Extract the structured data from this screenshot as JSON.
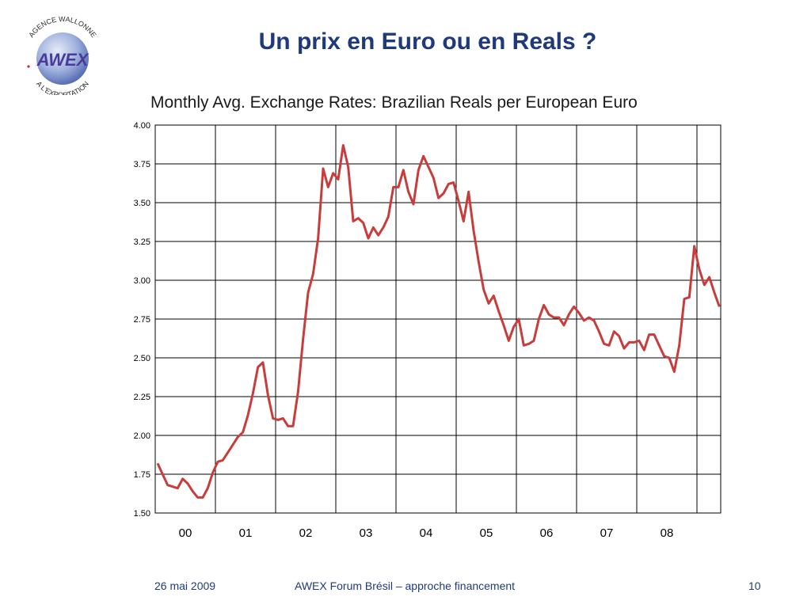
{
  "slide": {
    "title": "Un prix en Euro ou en Reals ?",
    "logo_text_top": "AGENCE WALLONNE",
    "logo_text_mid": "AWEX",
    "logo_text_bottom": "A L'EXPORTATION"
  },
  "footer": {
    "date": "26 mai 2009",
    "center": "AWEX Forum Brésil – approche financement",
    "page": "10"
  },
  "colors": {
    "title": "#1f3a7a",
    "series": "#c83c3c",
    "grid": "#000000"
  },
  "chart_data": {
    "type": "line",
    "title": "Monthly Avg. Exchange Rates: Brazilian Reals per European Euro",
    "xlabel": "",
    "ylabel": "",
    "ylim": [
      1.5,
      4.0
    ],
    "yticks": [
      "4.00",
      "3.75",
      "3.50",
      "3.25",
      "3.00",
      "2.75",
      "2.50",
      "2.25",
      "2.00",
      "1.75",
      "1.50"
    ],
    "xticks": [
      "00",
      "01",
      "02",
      "03",
      "04",
      "05",
      "06",
      "07",
      "08"
    ],
    "grid": true,
    "series": [
      {
        "name": "",
        "values": [
          1.82,
          1.75,
          1.68,
          1.67,
          1.66,
          1.72,
          1.69,
          1.64,
          1.6,
          1.6,
          1.66,
          1.76,
          1.83,
          1.84,
          1.89,
          1.94,
          1.99,
          2.02,
          2.13,
          2.27,
          2.44,
          2.47,
          2.26,
          2.11,
          2.1,
          2.11,
          2.06,
          2.06,
          2.28,
          2.62,
          2.92,
          3.04,
          3.27,
          3.72,
          3.6,
          3.69,
          3.65,
          3.87,
          3.73,
          3.38,
          3.4,
          3.37,
          3.27,
          3.34,
          3.29,
          3.34,
          3.41,
          3.6,
          3.6,
          3.71,
          3.57,
          3.49,
          3.71,
          3.8,
          3.73,
          3.66,
          3.53,
          3.56,
          3.62,
          3.63,
          3.51,
          3.38,
          3.57,
          3.32,
          3.12,
          2.94,
          2.85,
          2.9,
          2.8,
          2.71,
          2.61,
          2.7,
          2.75,
          2.58,
          2.59,
          2.61,
          2.75,
          2.84,
          2.78,
          2.76,
          2.76,
          2.71,
          2.78,
          2.83,
          2.79,
          2.74,
          2.76,
          2.74,
          2.67,
          2.59,
          2.58,
          2.67,
          2.64,
          2.56,
          2.6,
          2.6,
          2.61,
          2.55,
          2.65,
          2.65,
          2.58,
          2.51,
          2.5,
          2.41,
          2.58,
          2.88,
          2.89,
          3.22,
          3.07,
          2.97,
          3.02,
          2.92,
          2.83
        ]
      }
    ]
  }
}
